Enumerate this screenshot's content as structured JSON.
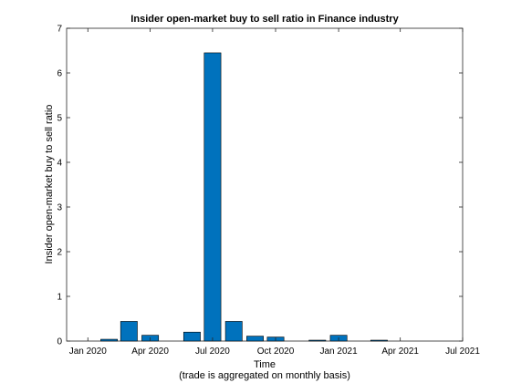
{
  "chart_data": {
    "type": "bar",
    "title": "Insider open-market buy to sell ratio in Finance industry",
    "xlabel": "Time",
    "xlabel_note": "(trade is aggregated on monthly basis)",
    "ylabel": "Insider open-market buy to sell ratio",
    "ylim": [
      0,
      7
    ],
    "yticks": [
      0,
      1,
      2,
      3,
      4,
      5,
      6,
      7
    ],
    "xlim": [
      "2019-12-01",
      "2021-07-01"
    ],
    "xticks": [
      {
        "date": "2020-01-01",
        "label": "Jan 2020"
      },
      {
        "date": "2020-04-01",
        "label": "Apr 2020"
      },
      {
        "date": "2020-07-01",
        "label": "Jul 2020"
      },
      {
        "date": "2020-10-01",
        "label": "Oct 2020"
      },
      {
        "date": "2021-01-01",
        "label": "Jan 2021"
      },
      {
        "date": "2021-04-01",
        "label": "Apr 2021"
      },
      {
        "date": "2021-07-01",
        "label": "Jul 2021"
      }
    ],
    "categories": [
      "2020-01",
      "2020-02",
      "2020-03",
      "2020-04",
      "2020-05",
      "2020-06",
      "2020-07",
      "2020-08",
      "2020-09",
      "2020-10",
      "2020-11",
      "2020-12",
      "2021-01",
      "2021-02",
      "2021-03",
      "2021-04",
      "2021-05",
      "2021-06"
    ],
    "values": [
      0,
      0.04,
      0.44,
      0.13,
      0,
      0.2,
      6.45,
      0.44,
      0.11,
      0.09,
      0,
      0.02,
      0.13,
      0,
      0.02,
      0,
      0,
      0
    ],
    "bar_color": "#0072BD",
    "grid": false,
    "box": true
  }
}
